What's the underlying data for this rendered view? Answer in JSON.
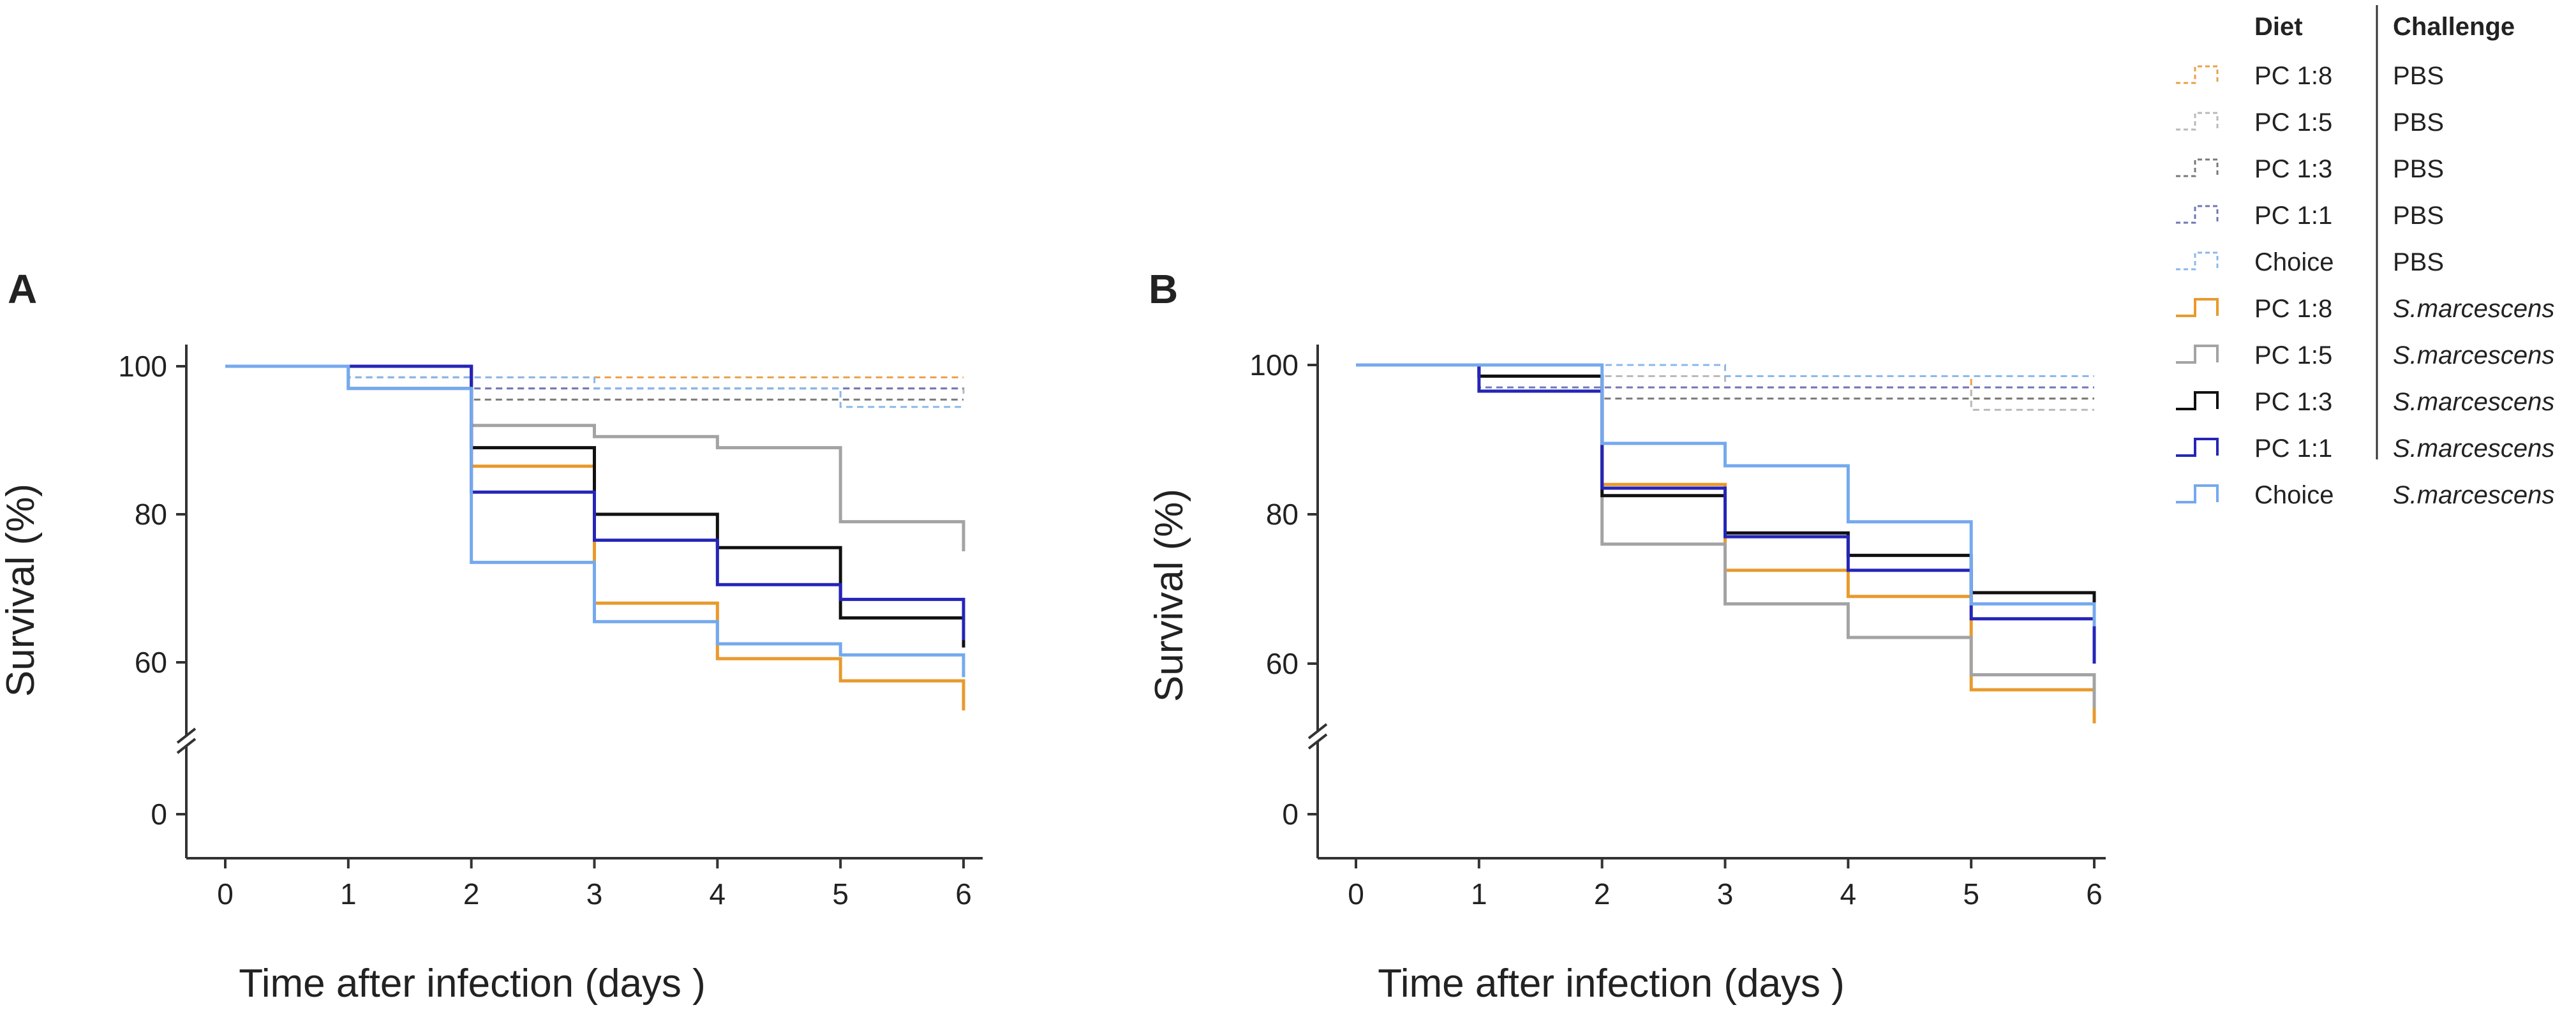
{
  "chart_data": [
    {
      "type": "line",
      "subtype": "step (Kaplan-Meier survival)",
      "panel_label": "A",
      "xlabel": "Time after infection (days )",
      "ylabel": "Survival (%)",
      "x": [
        0,
        1,
        2,
        3,
        4,
        5,
        6
      ],
      "xlim": [
        0,
        6
      ],
      "yticks": [
        0,
        60,
        80,
        100
      ],
      "y_axis_break": "between 0 and 60",
      "series": [
        {
          "name": "PC 1:8 / PBS",
          "color": "#e8a14a",
          "dashed": true,
          "y": [
            100,
            100,
            98.5,
            98.5,
            98.5,
            98.5,
            98.5
          ]
        },
        {
          "name": "PC 1:5 / PBS",
          "color": "#b9b9b9",
          "dashed": true,
          "y": [
            100,
            98.5,
            97,
            97,
            97,
            97,
            96
          ]
        },
        {
          "name": "PC 1:3 / PBS",
          "color": "#7a7a7a",
          "dashed": true,
          "y": [
            100,
            98.5,
            95.5,
            95.5,
            95.5,
            95.5,
            95.5
          ]
        },
        {
          "name": "PC 1:1 / PBS",
          "color": "#6f77b5",
          "dashed": true,
          "y": [
            100,
            100,
            97,
            97,
            97,
            97,
            97
          ]
        },
        {
          "name": "Choice / PBS",
          "color": "#8ab8ec",
          "dashed": true,
          "y": [
            100,
            98.5,
            98.5,
            97,
            97,
            94.5,
            94.5
          ]
        },
        {
          "name": "PC 1:8 / S.marcescens",
          "color": "#e89a2c",
          "dashed": false,
          "y": [
            100,
            100,
            86.5,
            68,
            60.5,
            57.5,
            53.5
          ]
        },
        {
          "name": "PC 1:5 / S.marcescens",
          "color": "#a3a3a3",
          "dashed": false,
          "y": [
            100,
            97,
            92,
            90.5,
            89,
            79,
            75
          ]
        },
        {
          "name": "PC 1:3 / S.marcescens",
          "color": "#111111",
          "dashed": false,
          "y": [
            100,
            100,
            89,
            80,
            75.5,
            66,
            62
          ]
        },
        {
          "name": "PC 1:1 / S.marcescens",
          "color": "#2525b8",
          "dashed": false,
          "y": [
            100,
            100,
            83,
            76.5,
            70.5,
            68.5,
            63
          ]
        },
        {
          "name": "Choice / S.marcescens",
          "color": "#74a9ee",
          "dashed": false,
          "y": [
            100,
            97,
            73.5,
            65.5,
            62.5,
            61,
            58
          ]
        }
      ]
    },
    {
      "type": "line",
      "subtype": "step (Kaplan-Meier survival)",
      "panel_label": "B",
      "xlabel": "Time after infection (days )",
      "ylabel": "Survival (%)",
      "x": [
        0,
        1,
        2,
        3,
        4,
        5,
        6
      ],
      "xlim": [
        0,
        6
      ],
      "yticks": [
        0,
        60,
        80,
        100
      ],
      "y_axis_break": "between 0 and 60",
      "series": [
        {
          "name": "PC 1:8 / PBS",
          "color": "#e8a14a",
          "dashed": true,
          "y": [
            100,
            98.5,
            98.5,
            98.5,
            98.5,
            95.5,
            95.5
          ]
        },
        {
          "name": "PC 1:5 / PBS",
          "color": "#b9b9b9",
          "dashed": true,
          "y": [
            100,
            98.5,
            98.5,
            97,
            97,
            94,
            94
          ]
        },
        {
          "name": "PC 1:3 / PBS",
          "color": "#7a7a7a",
          "dashed": true,
          "y": [
            100,
            98.5,
            95.5,
            95.5,
            95.5,
            95.5,
            95.5
          ]
        },
        {
          "name": "PC 1:1 / PBS",
          "color": "#6f77b5",
          "dashed": true,
          "y": [
            100,
            97,
            97,
            97,
            97,
            97,
            97
          ]
        },
        {
          "name": "Choice / PBS",
          "color": "#8ab8ec",
          "dashed": true,
          "y": [
            100,
            100,
            100,
            98.5,
            98.5,
            98.5,
            98.5
          ]
        },
        {
          "name": "PC 1:8 / S.marcescens",
          "color": "#e89a2c",
          "dashed": false,
          "y": [
            100,
            98.5,
            84,
            72.5,
            69,
            56.5,
            52
          ]
        },
        {
          "name": "PC 1:5 / S.marcescens",
          "color": "#a3a3a3",
          "dashed": false,
          "y": [
            100,
            98.5,
            76,
            68,
            63.5,
            58.5,
            54
          ]
        },
        {
          "name": "PC 1:3 / S.marcescens",
          "color": "#111111",
          "dashed": false,
          "y": [
            100,
            98.5,
            82.5,
            77.5,
            74.5,
            69.5,
            64
          ]
        },
        {
          "name": "PC 1:1 / S.marcescens",
          "color": "#2525b8",
          "dashed": false,
          "y": [
            100,
            96.5,
            83.5,
            77,
            72.5,
            66,
            60
          ]
        },
        {
          "name": "Choice / S.marcescens",
          "color": "#74a9ee",
          "dashed": false,
          "y": [
            100,
            100,
            89.5,
            86.5,
            79,
            68,
            65
          ]
        }
      ]
    }
  ],
  "legend": {
    "header_diet": "Diet",
    "header_challenge": "Challenge",
    "entries": [
      {
        "diet": "PC 1:8",
        "challenge": "PBS",
        "color": "#e8a14a",
        "dashed": true
      },
      {
        "diet": "PC 1:5",
        "challenge": "PBS",
        "color": "#b9b9b9",
        "dashed": true
      },
      {
        "diet": "PC 1:3",
        "challenge": "PBS",
        "color": "#7a7a7a",
        "dashed": true
      },
      {
        "diet": "PC 1:1",
        "challenge": "PBS",
        "color": "#6f77b5",
        "dashed": true
      },
      {
        "diet": "Choice",
        "challenge": "PBS",
        "color": "#8ab8ec",
        "dashed": true
      },
      {
        "diet": "PC 1:8",
        "challenge": "S.marcescens",
        "color": "#e89a2c",
        "dashed": false
      },
      {
        "diet": "PC 1:5",
        "challenge": "S.marcescens",
        "color": "#a3a3a3",
        "dashed": false
      },
      {
        "diet": "PC 1:3",
        "challenge": "S.marcescens",
        "color": "#111111",
        "dashed": false
      },
      {
        "diet": "PC 1:1",
        "challenge": "S.marcescens",
        "color": "#2525b8",
        "dashed": false
      },
      {
        "diet": "Choice",
        "challenge": "S.marcescens",
        "color": "#74a9ee",
        "dashed": false
      }
    ]
  }
}
